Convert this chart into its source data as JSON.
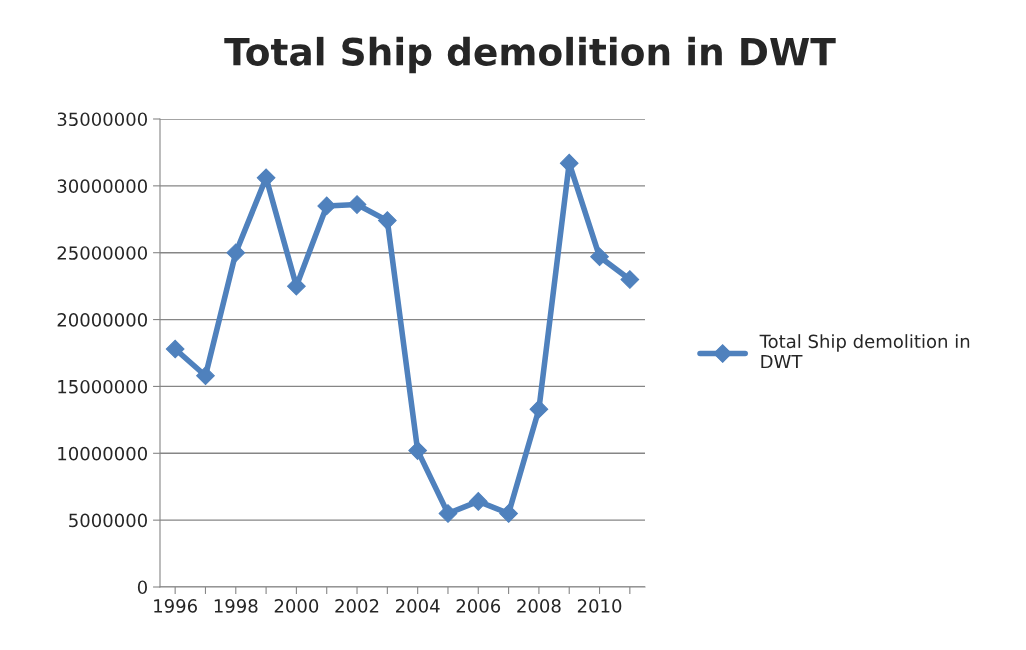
{
  "chart_data": {
    "type": "line",
    "title": "Total Ship demolition in DWT",
    "categories": [
      "1996",
      null,
      "1998",
      null,
      "2000",
      null,
      "2002",
      null,
      "2004",
      null,
      "2006",
      null,
      "2008",
      null,
      "2010",
      null
    ],
    "series": [
      {
        "name": "Total Ship demolition in DWT",
        "color": "#4f81bd",
        "values": [
          17800000,
          15800000,
          25000000,
          30600000,
          22500000,
          28500000,
          28600000,
          27400000,
          10200000,
          5500000,
          6400000,
          5500000,
          13300000,
          31700000,
          24700000,
          23000000
        ]
      }
    ],
    "ylim": [
      0,
      35000000
    ],
    "yticks": [
      0,
      5000000,
      10000000,
      15000000,
      20000000,
      25000000,
      30000000,
      35000000
    ],
    "grid": "y",
    "legend": "right",
    "marker": "diamond",
    "line_style": "solid"
  }
}
